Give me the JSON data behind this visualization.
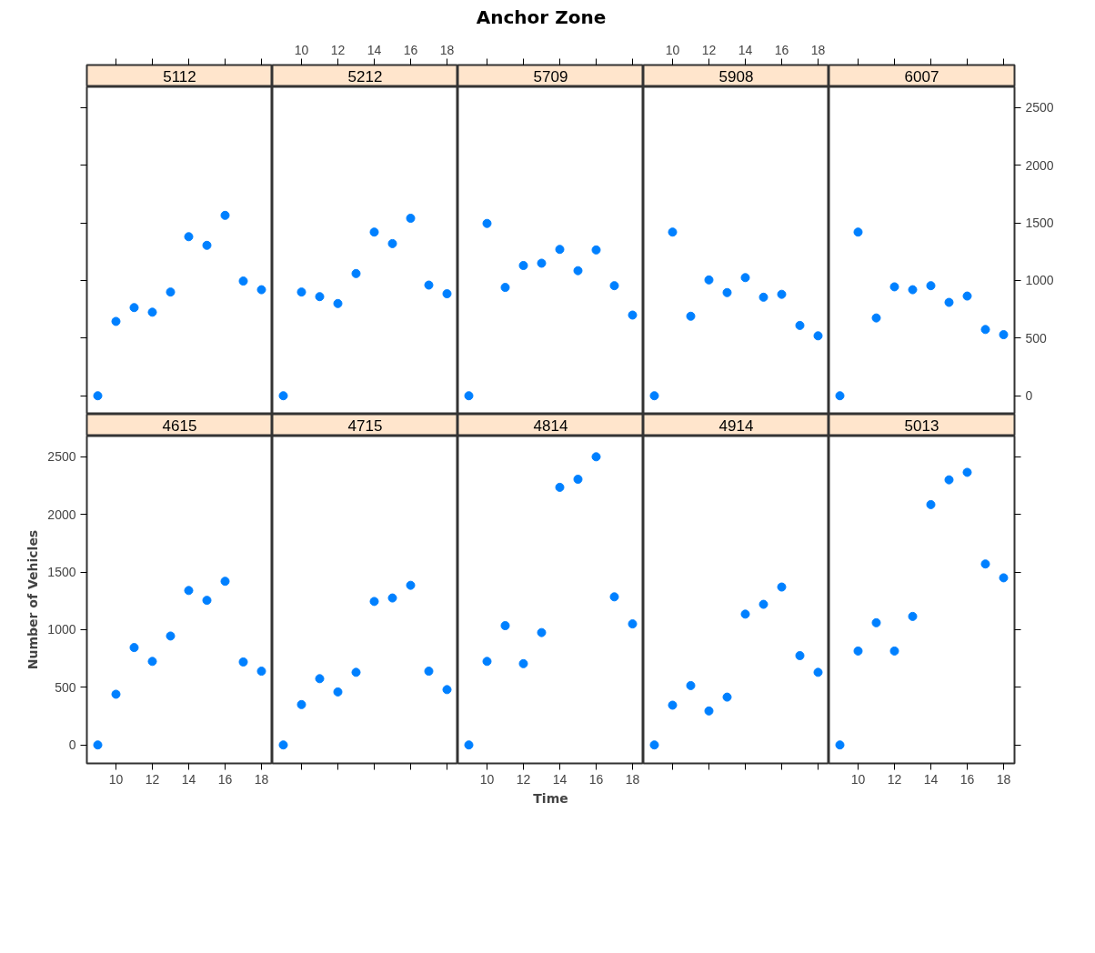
{
  "chart_data": [
    {
      "type": "scatter",
      "title": "5112",
      "annotations": [
        "Anchor Zone"
      ],
      "x": [
        9,
        10,
        11,
        12,
        13,
        14,
        15,
        16,
        17,
        18
      ],
      "values": [
        0,
        645,
        765,
        725,
        900,
        1380,
        1305,
        1565,
        995,
        920
      ],
      "color": "#0080ff",
      "marker": "circle",
      "xlim": [
        8.4,
        18.6
      ],
      "ylim": [
        -160,
        2680
      ],
      "xticks": [
        10,
        12,
        14,
        16,
        18
      ],
      "yticks": [
        0,
        500,
        1000,
        1500,
        2000,
        2500
      ],
      "tick_labels": false
    },
    {
      "type": "scatter",
      "title": "5212",
      "x": [
        9,
        10,
        11,
        12,
        13,
        14,
        15,
        16,
        17,
        18
      ],
      "values": [
        0,
        900,
        860,
        800,
        1060,
        1420,
        1320,
        1540,
        960,
        885
      ],
      "color": "#0080ff",
      "marker": "circle",
      "xlim": [
        8.4,
        18.6
      ],
      "ylim": [
        -160,
        2680
      ],
      "xticks": [
        10,
        12,
        14,
        16,
        18
      ],
      "tick_labels": "x"
    },
    {
      "type": "scatter",
      "title": "5709",
      "x": [
        9,
        10,
        11,
        12,
        13,
        14,
        15,
        16,
        17,
        18
      ],
      "values": [
        0,
        1495,
        940,
        1130,
        1150,
        1270,
        1085,
        1265,
        955,
        700
      ],
      "color": "#0080ff",
      "marker": "circle",
      "xlim": [
        8.4,
        18.6
      ],
      "ylim": [
        -160,
        2680
      ],
      "xticks": [
        10,
        12,
        14,
        16,
        18
      ],
      "tick_labels": false
    },
    {
      "type": "scatter",
      "title": "5908",
      "x": [
        9,
        10,
        11,
        12,
        13,
        14,
        15,
        16,
        17,
        18
      ],
      "values": [
        0,
        1420,
        690,
        1005,
        895,
        1025,
        855,
        880,
        610,
        520
      ],
      "color": "#0080ff",
      "marker": "circle",
      "xlim": [
        8.4,
        18.6
      ],
      "ylim": [
        -160,
        2680
      ],
      "xticks": [
        10,
        12,
        14,
        16,
        18
      ],
      "tick_labels": "x"
    },
    {
      "type": "scatter",
      "title": "6007",
      "x": [
        9,
        10,
        11,
        12,
        13,
        14,
        15,
        16,
        17,
        18
      ],
      "values": [
        0,
        1420,
        675,
        945,
        920,
        955,
        810,
        865,
        575,
        530
      ],
      "color": "#0080ff",
      "marker": "circle",
      "xlim": [
        8.4,
        18.6
      ],
      "ylim": [
        -160,
        2680
      ],
      "xticks": [
        10,
        12,
        14,
        16,
        18
      ],
      "yticks": [
        0,
        500,
        1000,
        1500,
        2000,
        2500
      ],
      "tick_labels": "y"
    },
    {
      "type": "scatter",
      "title": "4615",
      "ylabel": "Number of Vehicles",
      "x": [
        9,
        10,
        11,
        12,
        13,
        14,
        15,
        16,
        17,
        18
      ],
      "values": [
        0,
        440,
        845,
        725,
        945,
        1340,
        1255,
        1420,
        720,
        640
      ],
      "color": "#0080ff",
      "marker": "circle",
      "xlim": [
        8.4,
        18.6
      ],
      "ylim": [
        -160,
        2680
      ],
      "xticks": [
        10,
        12,
        14,
        16,
        18
      ],
      "yticks": [
        0,
        500,
        1000,
        1500,
        2000,
        2500
      ]
    },
    {
      "type": "scatter",
      "title": "4715",
      "x": [
        9,
        10,
        11,
        12,
        13,
        14,
        15,
        16,
        17,
        18
      ],
      "values": [
        0,
        350,
        575,
        460,
        630,
        1245,
        1275,
        1385,
        640,
        480
      ],
      "color": "#0080ff",
      "marker": "circle",
      "xlim": [
        8.4,
        18.6
      ],
      "ylim": [
        -160,
        2680
      ],
      "xticks": [
        10,
        12,
        14,
        16,
        18
      ],
      "tick_labels": false
    },
    {
      "type": "scatter",
      "title": "4814",
      "xlabel": "Time",
      "x": [
        9,
        10,
        11,
        12,
        13,
        14,
        15,
        16,
        17,
        18
      ],
      "values": [
        0,
        725,
        1035,
        705,
        975,
        2235,
        2305,
        2500,
        1285,
        1050
      ],
      "color": "#0080ff",
      "marker": "circle",
      "xlim": [
        8.4,
        18.6
      ],
      "ylim": [
        -160,
        2680
      ],
      "xticks": [
        10,
        12,
        14,
        16,
        18
      ],
      "tick_labels": "x"
    },
    {
      "type": "scatter",
      "title": "4914",
      "x": [
        9,
        10,
        11,
        12,
        13,
        14,
        15,
        16,
        17,
        18
      ],
      "values": [
        0,
        345,
        515,
        295,
        415,
        1135,
        1220,
        1370,
        775,
        630
      ],
      "color": "#0080ff",
      "marker": "circle",
      "xlim": [
        8.4,
        18.6
      ],
      "ylim": [
        -160,
        2680
      ],
      "xticks": [
        10,
        12,
        14,
        16,
        18
      ],
      "tick_labels": false
    },
    {
      "type": "scatter",
      "title": "5013",
      "x": [
        9,
        10,
        11,
        12,
        13,
        14,
        15,
        16,
        17,
        18
      ],
      "values": [
        0,
        815,
        1060,
        815,
        1115,
        2085,
        2300,
        2365,
        1570,
        1450
      ],
      "color": "#0080ff",
      "marker": "circle",
      "xlim": [
        8.4,
        18.6
      ],
      "ylim": [
        -160,
        2680
      ],
      "xticks": [
        10,
        12,
        14,
        16,
        18
      ],
      "yticks": [
        0,
        500,
        1000,
        1500,
        2000,
        2500
      ],
      "tick_labels": "x"
    }
  ]
}
